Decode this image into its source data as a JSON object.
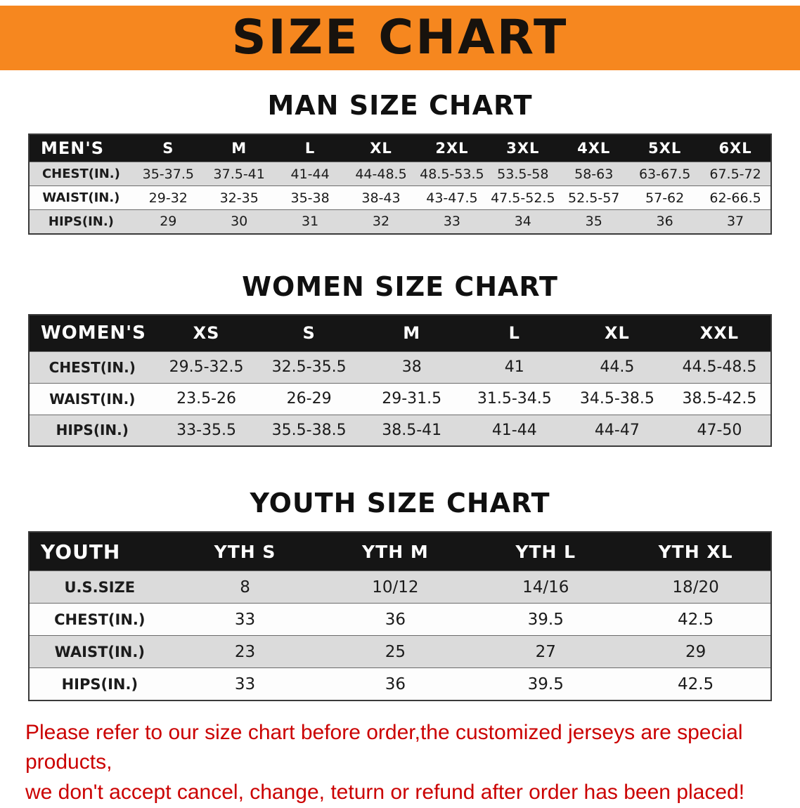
{
  "banner": {
    "title": "SIZE CHART",
    "bg_color": "#F6871F",
    "text_color": "#17120D"
  },
  "colors": {
    "table_header_bg": "#151515",
    "table_header_text": "#FFFFFF",
    "row_stripe_gray": "#DBDBDB",
    "row_stripe_white": "#FDFDFD",
    "disclaimer_red": "#CB0000"
  },
  "chart_data": [
    {
      "type": "table",
      "title": "MAN SIZE CHART",
      "header": [
        "MEN'S",
        "S",
        "M",
        "L",
        "XL",
        "2XL",
        "3XL",
        "4XL",
        "5XL",
        "6XL"
      ],
      "rows": [
        [
          "CHEST(IN.)",
          "35-37.5",
          "37.5-41",
          "41-44",
          "44-48.5",
          "48.5-53.5",
          "53.5-58",
          "58-63",
          "63-67.5",
          "67.5-72"
        ],
        [
          "WAIST(IN.)",
          "29-32",
          "32-35",
          "35-38",
          "38-43",
          "43-47.5",
          "47.5-52.5",
          "52.5-57",
          "57-62",
          "62-66.5"
        ],
        [
          "HIPS(IN.)",
          "29",
          "30",
          "31",
          "32",
          "33",
          "34",
          "35",
          "36",
          "37"
        ]
      ]
    },
    {
      "type": "table",
      "title": "WOMEN SIZE CHART",
      "header": [
        "WOMEN'S",
        "XS",
        "S",
        "M",
        "L",
        "XL",
        "XXL"
      ],
      "rows": [
        [
          "CHEST(IN.)",
          "29.5-32.5",
          "32.5-35.5",
          "38",
          "41",
          "44.5",
          "44.5-48.5"
        ],
        [
          "WAIST(IN.)",
          "23.5-26",
          "26-29",
          "29-31.5",
          "31.5-34.5",
          "34.5-38.5",
          "38.5-42.5"
        ],
        [
          "HIPS(IN.)",
          "33-35.5",
          "35.5-38.5",
          "38.5-41",
          "41-44",
          "44-47",
          "47-50"
        ]
      ]
    },
    {
      "type": "table",
      "title": "YOUTH SIZE CHART",
      "header": [
        "YOUTH",
        "YTH S",
        "YTH M",
        "YTH L",
        "YTH XL"
      ],
      "rows": [
        [
          "U.S.SIZE",
          "8",
          "10/12",
          "14/16",
          "18/20"
        ],
        [
          "CHEST(IN.)",
          "33",
          "36",
          "39.5",
          "42.5"
        ],
        [
          "WAIST(IN.)",
          "23",
          "25",
          "27",
          "29"
        ],
        [
          "HIPS(IN.)",
          "33",
          "36",
          "39.5",
          "42.5"
        ]
      ]
    }
  ],
  "disclaimer": {
    "line1": "Please refer to our size chart before order,the customized jerseys are special products,",
    "line2": "we don't accept cancel, change, teturn or refund after order has been placed!"
  }
}
